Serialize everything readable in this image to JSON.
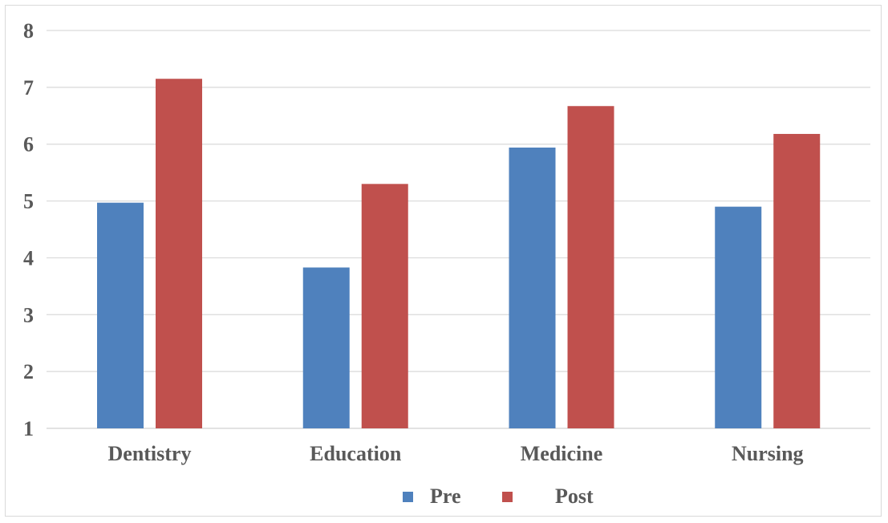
{
  "chart_data": {
    "type": "bar",
    "title": "",
    "xlabel": "",
    "ylabel": "",
    "categories": [
      "Dentistry",
      "Education",
      "Medicine",
      "Nursing"
    ],
    "series": [
      {
        "name": "Pre",
        "color": "#4f81bd",
        "values": [
          4.97,
          3.83,
          5.94,
          4.9
        ]
      },
      {
        "name": "Post",
        "color": "#c0504d",
        "values": [
          7.15,
          5.3,
          6.67,
          6.18
        ]
      }
    ],
    "ylim": [
      1,
      8
    ],
    "yticks": [
      "1",
      "2",
      "3",
      "4",
      "5",
      "6",
      "7",
      "8"
    ],
    "grid": true,
    "legend": "bottom"
  }
}
